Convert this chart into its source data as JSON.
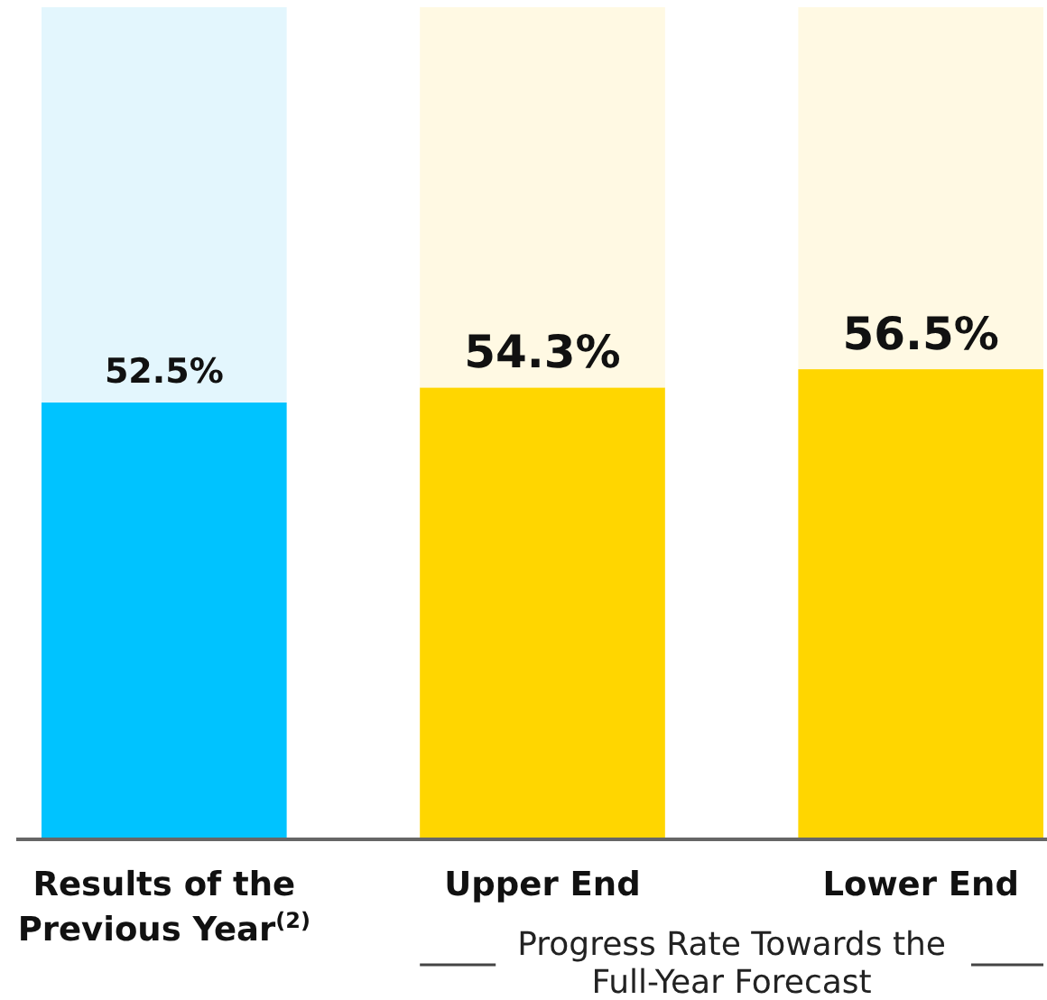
{
  "chart_data": {
    "type": "bar",
    "categories": [
      "Results of the Previous Year$^{(2)}$",
      "Upper End",
      "Lower End"
    ],
    "stacked": true,
    "tick_labels": "x",
    "series": [
      {
        "values": [
          52.5,
          54.3,
          56.5
        ],
        "colors": [
          "#00c3ff",
          "#ffd600",
          "#ffd600"
        ],
        "value_labels": [
          "52.5%",
          "54.3%",
          "56.5%"
        ]
      },
      {
        "values": [
          47.5,
          45.7,
          43.5
        ],
        "colors": [
          "#e3f6fd",
          "#fff9e3",
          "#fff9e3"
        ]
      }
    ],
    "annotations": [
      "Progress Rate Towards the Full-Year Forecast"
    ]
  }
}
